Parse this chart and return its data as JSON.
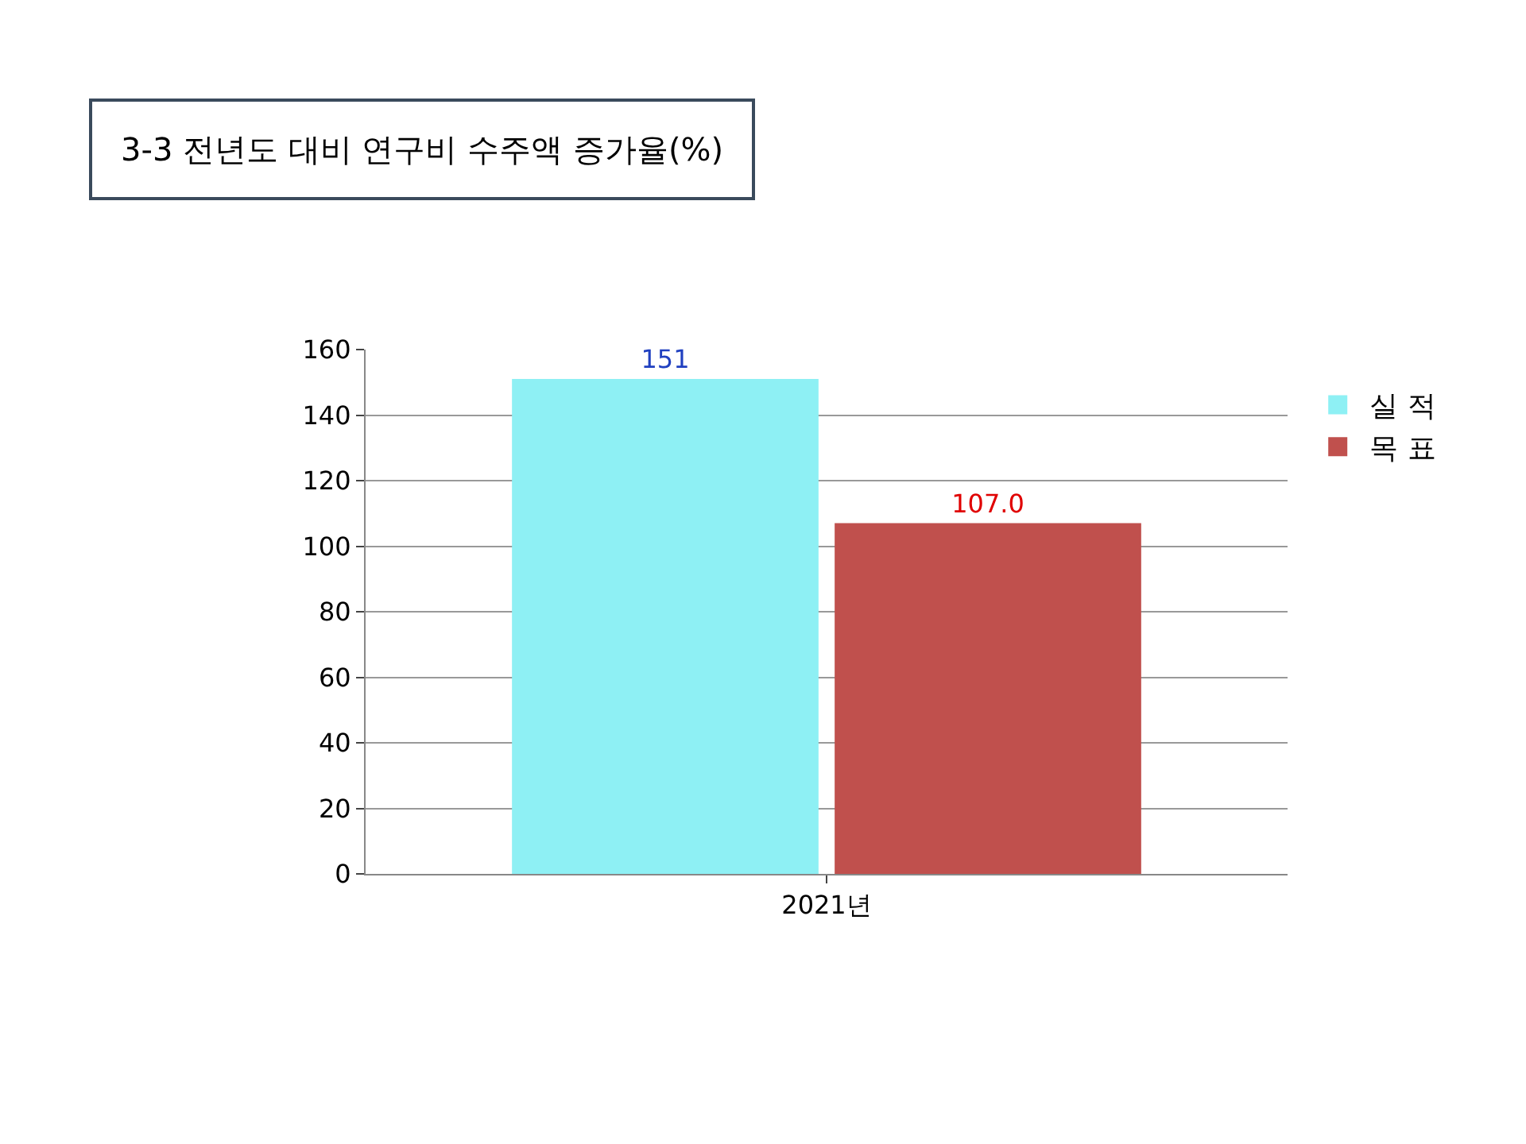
{
  "chart_data": {
    "type": "bar",
    "title": "3-3 전년도 대비 연구비 수주액 증가율(%)",
    "categories": [
      "2021년"
    ],
    "series": [
      {
        "name": "실 적",
        "color": "#8ef0f4",
        "values": [
          151
        ],
        "value_labels": [
          "151"
        ]
      },
      {
        "name": "목 표",
        "color": "#c0504d",
        "values": [
          107
        ],
        "value_labels": [
          "107.0"
        ]
      }
    ],
    "ylim": [
      0,
      160
    ],
    "yticks": [
      0,
      20,
      40,
      60,
      80,
      100,
      120,
      140,
      160
    ],
    "grid": "y",
    "legend": "right"
  }
}
